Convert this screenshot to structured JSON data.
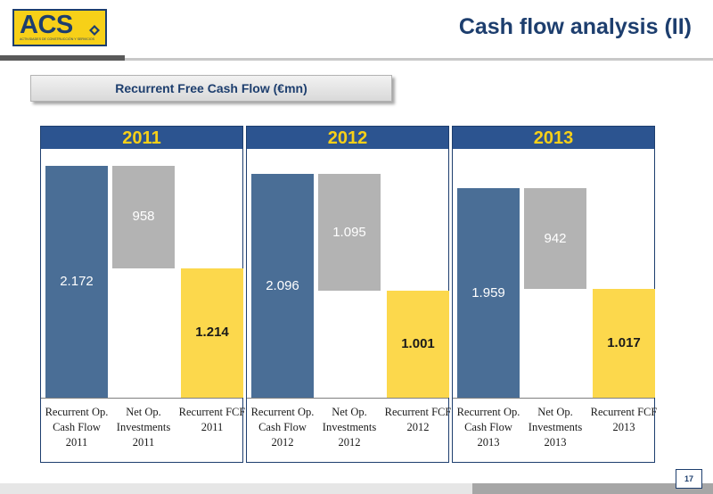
{
  "logo": {
    "text": "ACS",
    "subtext": "ACTIVIDADES DE CONSTRUCCIÓN Y SERVICIOS"
  },
  "title": "Cash flow analysis (II)",
  "subtitle": "Recurrent Free Cash Flow (€mn)",
  "page_number": "17",
  "colors": {
    "op_cash_flow": "#4a6e96",
    "net_investments": "#b3b3b3",
    "fcf": "#fcd84c",
    "header": "#2c5490",
    "year_text": "#f7d018"
  },
  "chart_data": [
    {
      "type": "bar",
      "title": "2011",
      "categories": [
        "Recurrent Op. Cash Flow 2011",
        "Net Op. Investments 2011",
        "Recurrent FCF 2011"
      ],
      "value_labels": [
        "2.172",
        "958",
        "1.214"
      ],
      "values": [
        2172,
        958,
        1214
      ]
    },
    {
      "type": "bar",
      "title": "2012",
      "categories": [
        "Recurrent Op. Cash Flow 2012",
        "Net Op. Investments 2012",
        "Recurrent FCF 2012"
      ],
      "value_labels": [
        "2.096",
        "1.095",
        "1.001"
      ],
      "values": [
        2096,
        1095,
        1001
      ]
    },
    {
      "type": "bar",
      "title": "2013",
      "categories": [
        "Recurrent Op. Cash Flow 2013",
        "Net Op. Investments 2013",
        "Recurrent FCF 2013"
      ],
      "value_labels": [
        "1.959",
        "942",
        "1.017"
      ],
      "values": [
        1959,
        942,
        1017
      ]
    }
  ]
}
